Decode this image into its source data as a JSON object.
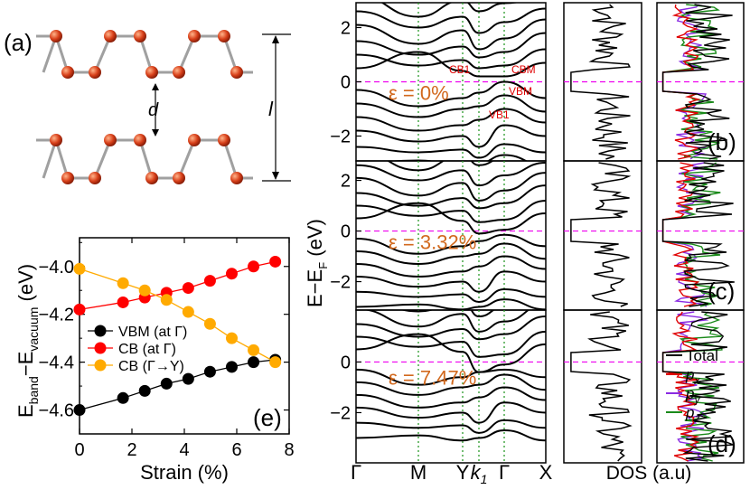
{
  "structure_panel": {
    "label": "(a)",
    "d_label": "d",
    "l_label": "l"
  },
  "band_panels": {
    "ylabel": "E−E",
    "ylabel_sub": "F",
    "ylabel_unit": " (eV)",
    "k_labels": [
      "Γ",
      "M",
      "Y",
      "k",
      "1",
      "Γ",
      "X"
    ],
    "strain_labels": [
      "ε = 0%",
      "ε = 3.32%",
      "ε = 7.47%"
    ],
    "top_annotations": [
      "CB1",
      "CBM",
      "VBM",
      "VB1"
    ],
    "y_ticks": [
      "2",
      "0",
      "−2"
    ],
    "panel_labels": [
      "(b)",
      "(c)",
      "(d)"
    ],
    "dos_xlabel": "DOS (a.u)"
  },
  "legend_dos": {
    "items": [
      {
        "label": "Total",
        "color": "#000000"
      },
      {
        "label": "p",
        "sub": "x",
        "color": "#e00000"
      },
      {
        "label": "p",
        "sub": "y",
        "color": "#8a2be2"
      },
      {
        "label": "p",
        "sub": "z",
        "color": "#1a8a1a"
      }
    ]
  },
  "chart_data": {
    "type": "line",
    "title": "",
    "panel_label": "(e)",
    "xlabel": "Strain (%)",
    "ylabel_main": "E",
    "ylabel_sub1": "band",
    "ylabel_mid": "−E",
    "ylabel_sub2": "vacuum",
    "ylabel_unit": " (eV)",
    "xlim": [
      0,
      8
    ],
    "ylim": [
      -4.7,
      -3.88
    ],
    "x_ticks": [
      0,
      2,
      4,
      6,
      8
    ],
    "y_ticks": [
      -4.0,
      -4.2,
      -4.4,
      -4.6
    ],
    "y_tick_labels": [
      "−4.0",
      "−4.2",
      "−4.4",
      "−4.6"
    ],
    "x": [
      0,
      1.66,
      2.49,
      3.32,
      4.15,
      4.98,
      5.81,
      6.64,
      7.47
    ],
    "series": [
      {
        "name": "VBM (at Γ)",
        "color": "#000000",
        "values": [
          -4.6,
          -4.55,
          -4.52,
          -4.49,
          -4.47,
          -4.44,
          -4.42,
          -4.4,
          -4.39
        ]
      },
      {
        "name": "CB (at Γ)",
        "color": "#ff0000",
        "values": [
          -4.18,
          -4.15,
          -4.13,
          -4.11,
          -4.09,
          -4.06,
          -4.03,
          -4.0,
          -3.98
        ]
      },
      {
        "name": "CB (Γ→Y)",
        "color": "#ffaa00",
        "values": [
          -4.01,
          -4.07,
          -4.1,
          -4.14,
          -4.19,
          -4.24,
          -4.3,
          -4.35,
          -4.4
        ]
      }
    ]
  }
}
